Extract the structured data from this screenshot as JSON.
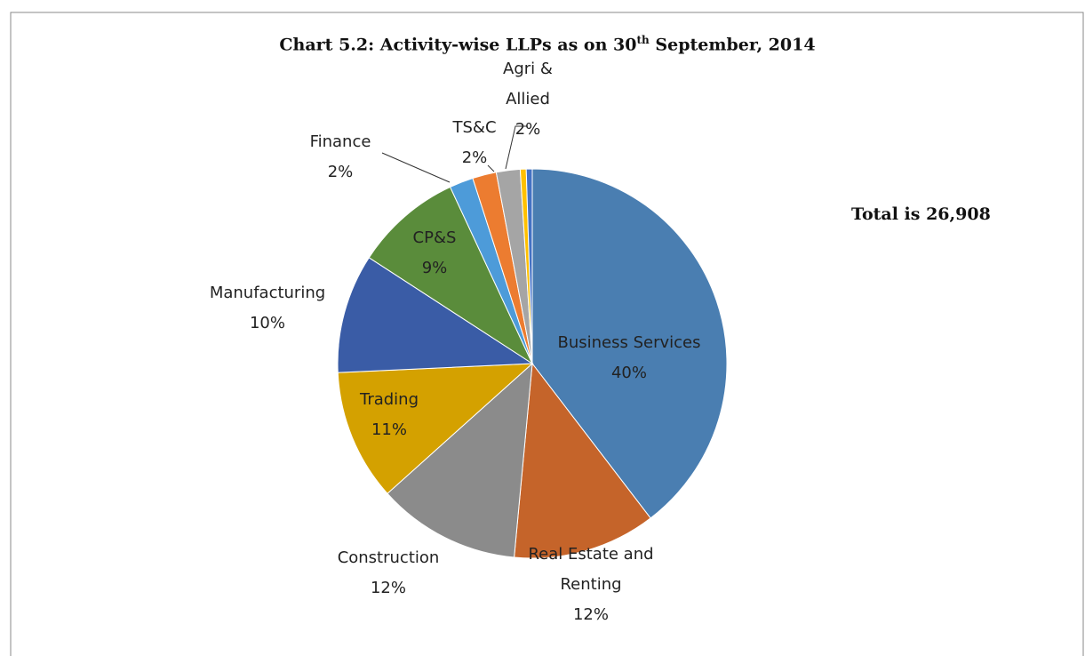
{
  "chart_data": {
    "type": "pie",
    "title": "Chart 5.2: Activity-wise LLPs as on 30",
    "title_sup": "th",
    "title_end": " September, 2014",
    "annotation": "Total is 26,908",
    "categories": [
      "Business Services",
      "Real Estate and Renting",
      "Construction",
      "Trading",
      "Manufacturing",
      "CP&S",
      "Finance",
      "TS&C",
      "Agri & Allied",
      null,
      null
    ],
    "values": [
      40,
      12,
      12,
      11,
      10,
      9,
      2,
      2,
      2,
      0.5,
      0.5
    ],
    "value_labels": [
      "40%",
      "12%",
      "12%",
      "11%",
      "10%",
      "9%",
      "2%",
      "2%",
      "2%",
      null,
      null
    ],
    "colors": [
      "#4a7eb1",
      "#c5642a",
      "#8b8b8b",
      "#d4a100",
      "#3a5ca6",
      "#5a8c3b",
      "#4d9bd9",
      "#ec7c30",
      "#a5a5a5",
      "#ffc000",
      "#4472c4"
    ]
  }
}
